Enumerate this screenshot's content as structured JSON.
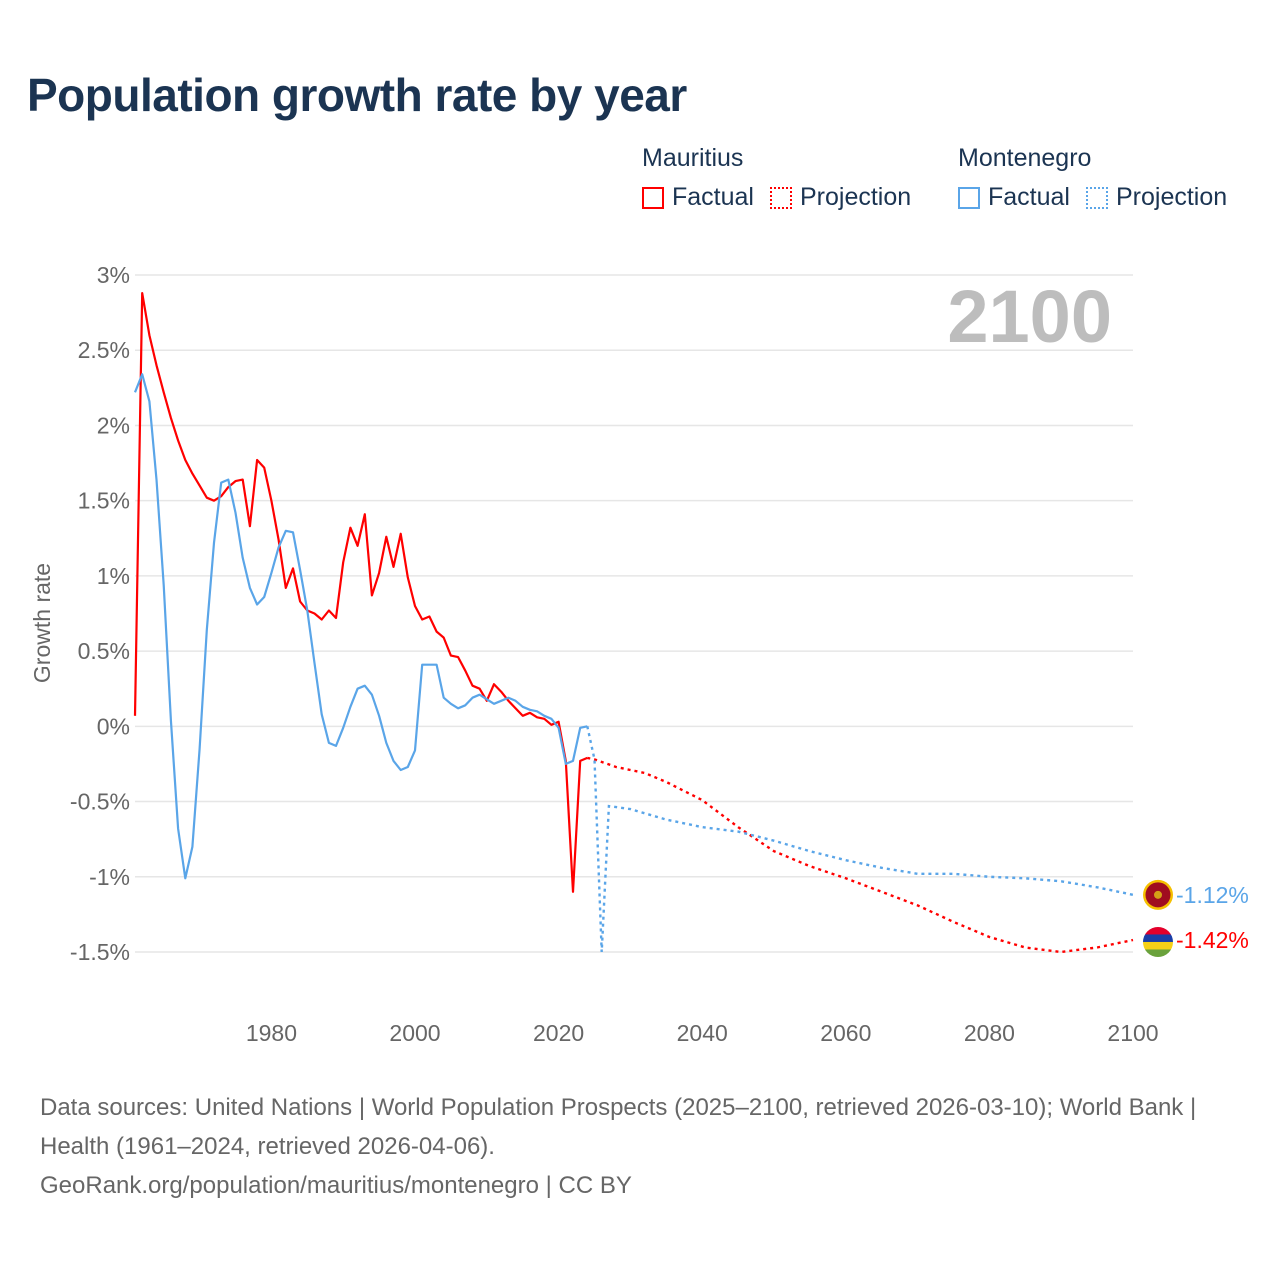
{
  "title": "Population growth rate by year",
  "legend": {
    "groups": [
      {
        "name": "Mauritius",
        "color": "#ff0000",
        "factual": "Factual",
        "projection": "Projection"
      },
      {
        "name": "Montenegro",
        "color": "#5aa5e8",
        "factual": "Factual",
        "projection": "Projection"
      }
    ]
  },
  "footer": {
    "sources": "Data sources: United Nations | World Population Prospects (2025–2100, retrieved 2026-03-10); World Bank | Health (1961–2024, retrieved 2026-04-06).",
    "link": "GeoRank.org/population/mauritius/montenegro | CC BY"
  },
  "chart_data": {
    "type": "line",
    "title": "Population growth rate by year",
    "year_label": "2100",
    "ylabel": "Growth rate",
    "xlabel": "",
    "xlim": [
      1961,
      2100
    ],
    "ylim": [
      -1.5,
      3
    ],
    "yticks": [
      3,
      2.5,
      2,
      1.5,
      1,
      0.5,
      0,
      -0.5,
      -1,
      -1.5
    ],
    "ytick_labels": [
      "3%",
      "2.5%",
      "2%",
      "1.5%",
      "1%",
      "0.5%",
      "0%",
      "-0.5%",
      "-1%",
      "-1.5%"
    ],
    "xticks": [
      1980,
      2000,
      2020,
      2040,
      2060,
      2080,
      2100
    ],
    "xtick_labels": [
      "1980",
      "2000",
      "2020",
      "2040",
      "2060",
      "2080",
      "2100"
    ],
    "grid": true,
    "series": [
      {
        "name": "Mauritius",
        "color": "#ff0000",
        "end_label": "-1.42%",
        "factual": {
          "x": [
            1961,
            1962,
            1963,
            1964,
            1965,
            1966,
            1967,
            1968,
            1969,
            1970,
            1971,
            1972,
            1973,
            1974,
            1975,
            1976,
            1977,
            1978,
            1979,
            1980,
            1981,
            1982,
            1983,
            1984,
            1985,
            1986,
            1987,
            1988,
            1989,
            1990,
            1991,
            1992,
            1993,
            1994,
            1995,
            1996,
            1997,
            1998,
            1999,
            2000,
            2001,
            2002,
            2003,
            2004,
            2005,
            2006,
            2007,
            2008,
            2009,
            2010,
            2011,
            2012,
            2013,
            2014,
            2015,
            2016,
            2017,
            2018,
            2019,
            2020,
            2021,
            2022,
            2023,
            2024
          ],
          "y": [
            0.07,
            2.88,
            2.6,
            2.4,
            2.22,
            2.05,
            1.9,
            1.77,
            1.68,
            1.6,
            1.52,
            1.5,
            1.53,
            1.59,
            1.63,
            1.64,
            1.33,
            1.77,
            1.72,
            1.5,
            1.24,
            0.92,
            1.05,
            0.83,
            0.77,
            0.75,
            0.71,
            0.77,
            0.72,
            1.09,
            1.32,
            1.2,
            1.41,
            0.87,
            1.02,
            1.26,
            1.06,
            1.28,
            0.99,
            0.8,
            0.71,
            0.73,
            0.63,
            0.59,
            0.47,
            0.46,
            0.37,
            0.27,
            0.25,
            0.17,
            0.28,
            0.23,
            0.17,
            0.12,
            0.07,
            0.09,
            0.06,
            0.05,
            0.01,
            0.03,
            -0.23,
            -1.1,
            -0.23,
            -0.21
          ]
        },
        "projection": {
          "x": [
            2024,
            2025,
            2028,
            2030,
            2032,
            2035,
            2040,
            2045,
            2050,
            2055,
            2060,
            2065,
            2070,
            2075,
            2080,
            2085,
            2090,
            2095,
            2100
          ],
          "y": [
            -0.21,
            -0.22,
            -0.27,
            -0.29,
            -0.31,
            -0.37,
            -0.49,
            -0.67,
            -0.83,
            -0.93,
            -1.01,
            -1.1,
            -1.19,
            -1.3,
            -1.4,
            -1.47,
            -1.5,
            -1.47,
            -1.42
          ]
        }
      },
      {
        "name": "Montenegro",
        "color": "#5aa5e8",
        "end_label": "-1.12%",
        "factual": {
          "x": [
            1961,
            1962,
            1963,
            1964,
            1965,
            1966,
            1967,
            1968,
            1969,
            1970,
            1971,
            1972,
            1973,
            1974,
            1975,
            1976,
            1977,
            1978,
            1979,
            1980,
            1981,
            1982,
            1983,
            1984,
            1985,
            1986,
            1987,
            1988,
            1989,
            1990,
            1991,
            1992,
            1993,
            1994,
            1995,
            1996,
            1997,
            1998,
            1999,
            2000,
            2001,
            2002,
            2003,
            2004,
            2005,
            2006,
            2007,
            2008,
            2009,
            2010,
            2011,
            2012,
            2013,
            2014,
            2015,
            2016,
            2017,
            2018,
            2019,
            2020,
            2021,
            2022,
            2023,
            2024
          ],
          "y": [
            2.22,
            2.34,
            2.16,
            1.64,
            0.94,
            0.04,
            -0.68,
            -1.01,
            -0.8,
            -0.15,
            0.64,
            1.22,
            1.62,
            1.64,
            1.42,
            1.12,
            0.92,
            0.81,
            0.86,
            1.02,
            1.19,
            1.3,
            1.29,
            1.04,
            0.77,
            0.42,
            0.08,
            -0.11,
            -0.13,
            -0.01,
            0.13,
            0.25,
            0.27,
            0.21,
            0.07,
            -0.11,
            -0.23,
            -0.29,
            -0.27,
            -0.16,
            0.41,
            0.41,
            0.41,
            0.19,
            0.15,
            0.12,
            0.14,
            0.19,
            0.21,
            0.18,
            0.15,
            0.17,
            0.19,
            0.17,
            0.13,
            0.11,
            0.1,
            0.07,
            0.05,
            -0.01,
            -0.25,
            -0.23,
            -0.01,
            0.0
          ]
        },
        "projection": {
          "x": [
            2024,
            2025,
            2026,
            2027,
            2030,
            2035,
            2040,
            2045,
            2050,
            2055,
            2060,
            2065,
            2070,
            2075,
            2080,
            2085,
            2090,
            2095,
            2100
          ],
          "y": [
            0.0,
            -0.22,
            -1.5,
            -0.53,
            -0.55,
            -0.62,
            -0.67,
            -0.7,
            -0.76,
            -0.83,
            -0.89,
            -0.94,
            -0.98,
            -0.98,
            -1.0,
            -1.01,
            -1.03,
            -1.07,
            -1.12
          ]
        }
      }
    ]
  }
}
